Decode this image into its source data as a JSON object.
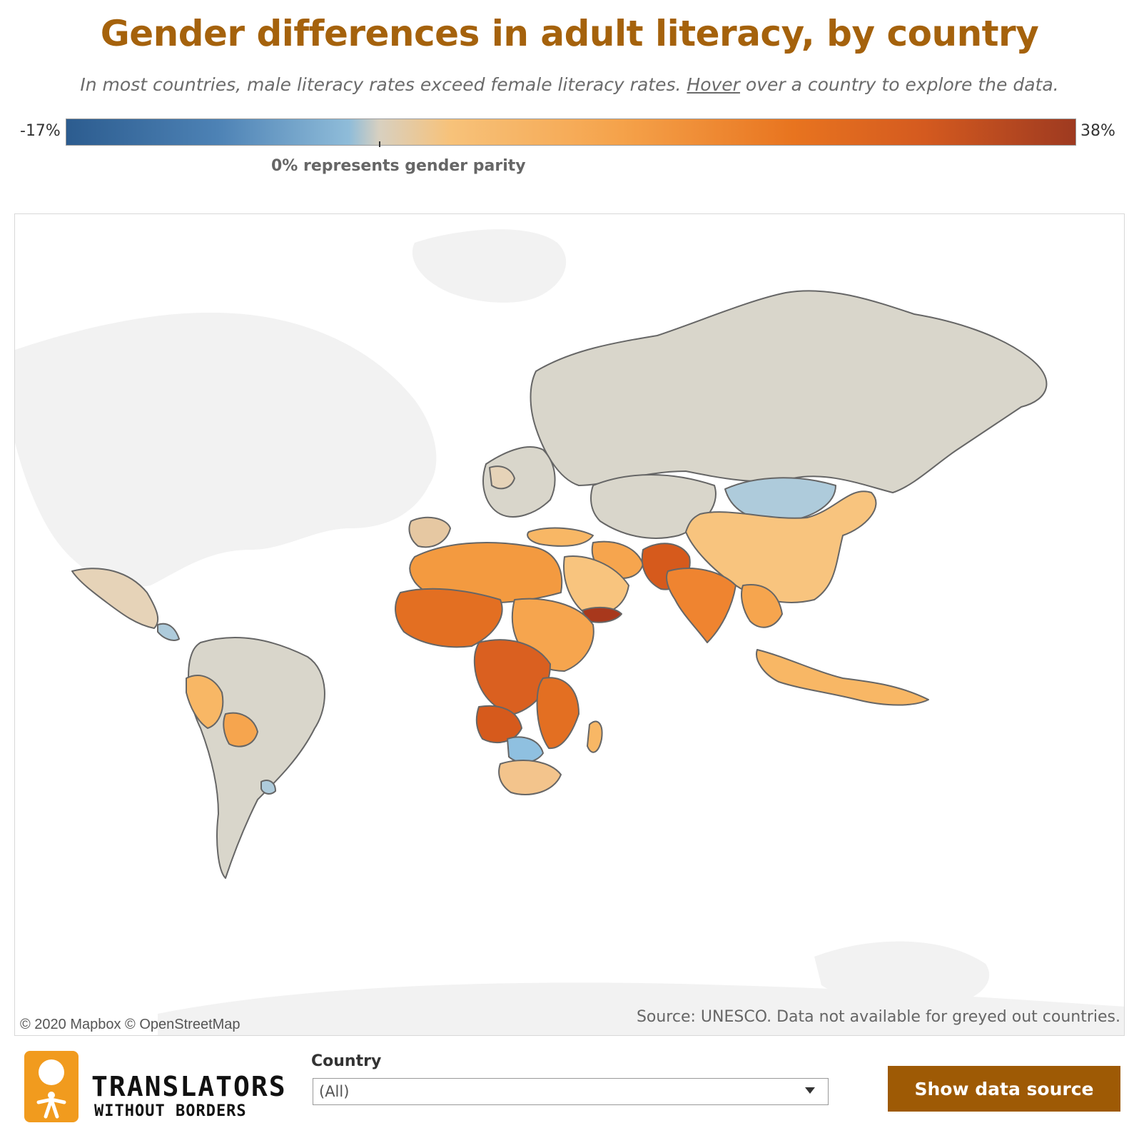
{
  "header": {
    "title": "Gender differences in adult literacy, by country",
    "subtitle_prefix": "In most countries, male literacy rates exceed female literacy rates. ",
    "subtitle_link": "Hover",
    "subtitle_suffix": " over a country to explore the data."
  },
  "legend": {
    "min_label": "-17%",
    "max_label": "38%",
    "min_value": -17,
    "max_value": 38,
    "parity_value": 0,
    "parity_note": "0% represents gender parity",
    "colors": {
      "low": "#2c5c8f",
      "parity": "#d8d0c0",
      "mid": "#f5a24a",
      "high": "#9e3a20",
      "no_data": "#d9d6cb",
      "land": "#f3f3f3",
      "border": "#666666"
    }
  },
  "map": {
    "attribution": "© 2020 Mapbox © OpenStreetMap",
    "source_note": "Source: UNESCO. Data not available for greyed out countries."
  },
  "footer": {
    "logo_line1": "TRANSLATORS",
    "logo_line2": "WITHOUT BORDERS",
    "logo_icon": "translators-without-borders-figure-icon",
    "country_filter_label": "Country",
    "country_filter_value": "(All)",
    "show_button": "Show data source"
  }
}
